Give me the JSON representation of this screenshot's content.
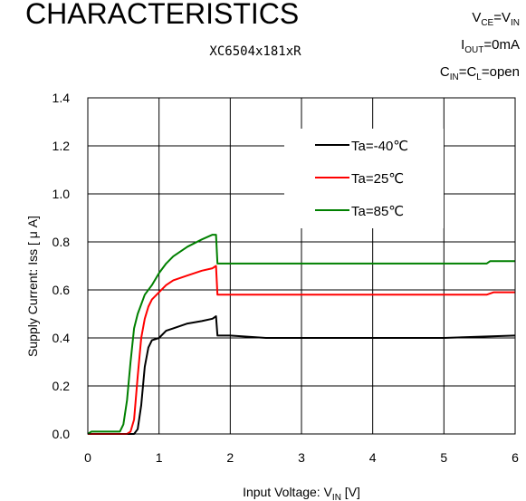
{
  "header": {
    "title": "CHARACTERISTICS",
    "subtitle": "XC6504x181xR",
    "conditions": {
      "line1": {
        "pre": "V",
        "sub1": "CE",
        "mid": "=V",
        "sub2": "IN",
        "post": ""
      },
      "line2": {
        "pre": "I",
        "sub1": "OUT",
        "mid": "=0mA",
        "sub2": "",
        "post": ""
      },
      "line3": {
        "pre": "C",
        "sub1": "IN",
        "mid": "=C",
        "sub2": "L",
        "post": "=open"
      }
    }
  },
  "chart_data": {
    "type": "line",
    "xlabel": {
      "pre": "Input Voltage: V",
      "sub": "IN",
      "post": " [V]"
    },
    "ylabel": "Supply Current: Iss [ μ A]",
    "xlim": [
      0,
      6
    ],
    "ylim": [
      0,
      1.4
    ],
    "xticks": [
      "0",
      "1",
      "2",
      "3",
      "4",
      "5",
      "6"
    ],
    "yticks": [
      "0.0",
      "0.2",
      "0.4",
      "0.6",
      "0.8",
      "1.0",
      "1.2",
      "1.4"
    ],
    "grid": true,
    "legend_position": "upper-right",
    "series": [
      {
        "name": "Ta=-40℃",
        "color": "#000000",
        "points": [
          [
            0,
            0.0
          ],
          [
            0.65,
            0.0
          ],
          [
            0.7,
            0.02
          ],
          [
            0.75,
            0.12
          ],
          [
            0.8,
            0.28
          ],
          [
            0.85,
            0.36
          ],
          [
            0.9,
            0.39
          ],
          [
            1.0,
            0.4
          ],
          [
            1.1,
            0.43
          ],
          [
            1.2,
            0.44
          ],
          [
            1.4,
            0.46
          ],
          [
            1.6,
            0.47
          ],
          [
            1.75,
            0.48
          ],
          [
            1.8,
            0.49
          ],
          [
            1.82,
            0.41
          ],
          [
            2.0,
            0.41
          ],
          [
            2.5,
            0.4
          ],
          [
            3.0,
            0.4
          ],
          [
            4.0,
            0.4
          ],
          [
            5.0,
            0.4
          ],
          [
            6.0,
            0.41
          ]
        ]
      },
      {
        "name": "Ta=25℃",
        "color": "#ff0000",
        "points": [
          [
            0,
            0.0
          ],
          [
            0.55,
            0.0
          ],
          [
            0.6,
            0.01
          ],
          [
            0.65,
            0.06
          ],
          [
            0.7,
            0.24
          ],
          [
            0.75,
            0.4
          ],
          [
            0.8,
            0.48
          ],
          [
            0.85,
            0.53
          ],
          [
            0.9,
            0.56
          ],
          [
            1.0,
            0.59
          ],
          [
            1.1,
            0.62
          ],
          [
            1.2,
            0.64
          ],
          [
            1.4,
            0.66
          ],
          [
            1.6,
            0.68
          ],
          [
            1.75,
            0.69
          ],
          [
            1.8,
            0.7
          ],
          [
            1.82,
            0.58
          ],
          [
            2.0,
            0.58
          ],
          [
            3.0,
            0.58
          ],
          [
            4.0,
            0.58
          ],
          [
            5.0,
            0.58
          ],
          [
            5.6,
            0.58
          ],
          [
            5.7,
            0.59
          ],
          [
            6.0,
            0.59
          ]
        ]
      },
      {
        "name": "Ta=85℃",
        "color": "#008000",
        "points": [
          [
            0,
            0.0
          ],
          [
            0.05,
            0.01
          ],
          [
            0.45,
            0.01
          ],
          [
            0.5,
            0.04
          ],
          [
            0.55,
            0.14
          ],
          [
            0.6,
            0.3
          ],
          [
            0.65,
            0.44
          ],
          [
            0.7,
            0.5
          ],
          [
            0.8,
            0.58
          ],
          [
            0.9,
            0.62
          ],
          [
            1.0,
            0.67
          ],
          [
            1.1,
            0.71
          ],
          [
            1.2,
            0.74
          ],
          [
            1.4,
            0.78
          ],
          [
            1.6,
            0.81
          ],
          [
            1.75,
            0.83
          ],
          [
            1.8,
            0.83
          ],
          [
            1.82,
            0.71
          ],
          [
            2.0,
            0.71
          ],
          [
            3.0,
            0.71
          ],
          [
            4.0,
            0.71
          ],
          [
            5.0,
            0.71
          ],
          [
            5.6,
            0.71
          ],
          [
            5.65,
            0.72
          ],
          [
            6.0,
            0.72
          ]
        ]
      }
    ]
  }
}
